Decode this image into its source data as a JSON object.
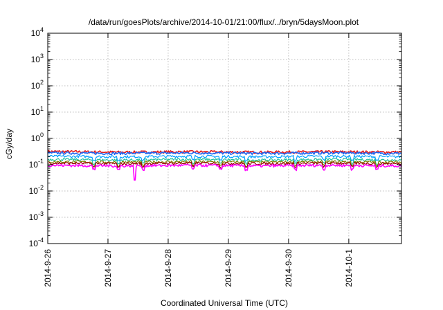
{
  "chart_data": {
    "type": "line",
    "title": "/data/run/goesPlots/archive/2014-10-01/21:00/flux/../bryn/5daysMoon.plot",
    "xlabel": "Coordinated Universal Time (UTC)",
    "ylabel": "cGy/day",
    "y_scale": "log",
    "ylim": [
      0.0001,
      10000
    ],
    "y_ticks": [
      {
        "value": 0.0001,
        "base": "10",
        "exp": "-4"
      },
      {
        "value": 0.001,
        "base": "10",
        "exp": "-3"
      },
      {
        "value": 0.01,
        "base": "10",
        "exp": "-2"
      },
      {
        "value": 0.1,
        "base": "10",
        "exp": "-1"
      },
      {
        "value": 1,
        "base": "10",
        "exp": "0"
      },
      {
        "value": 10,
        "base": "10",
        "exp": "1"
      },
      {
        "value": 100,
        "base": "10",
        "exp": "2"
      },
      {
        "value": 1000,
        "base": "10",
        "exp": "3"
      },
      {
        "value": 10000,
        "base": "10",
        "exp": "4"
      }
    ],
    "xlim": [
      "2014-09-26 00:00",
      "2014-10-01 21:00"
    ],
    "x_ticks": [
      "2014-9-26",
      "2014-9-27",
      "2014-9-28",
      "2014-9-29",
      "2014-9-30",
      "2014-10-1"
    ],
    "grid": true,
    "legend": "none",
    "series": [
      {
        "color": "#e41a1c",
        "values_approx": [
          0.32,
          0.3,
          0.31,
          0.3,
          0.31,
          0.3
        ]
      },
      {
        "color": "#1e64f0",
        "values_approx": [
          0.28,
          0.27,
          0.28,
          0.27,
          0.28,
          0.27
        ]
      },
      {
        "color": "#00a0ff",
        "values_approx": [
          0.21,
          0.2,
          0.21,
          0.2,
          0.21,
          0.2
        ]
      },
      {
        "color": "#20c0a0",
        "values_approx": [
          0.16,
          0.15,
          0.16,
          0.15,
          0.16,
          0.15
        ]
      },
      {
        "color": "#808000",
        "values_approx": [
          0.13,
          0.125,
          0.13,
          0.125,
          0.13,
          0.125
        ]
      },
      {
        "color": "#990000",
        "values_approx": [
          0.115,
          0.11,
          0.115,
          0.11,
          0.115,
          0.11
        ]
      },
      {
        "color": "#ff00ff",
        "values_approx": [
          0.095,
          0.09,
          0.095,
          0.09,
          0.095,
          0.09
        ]
      }
    ]
  }
}
